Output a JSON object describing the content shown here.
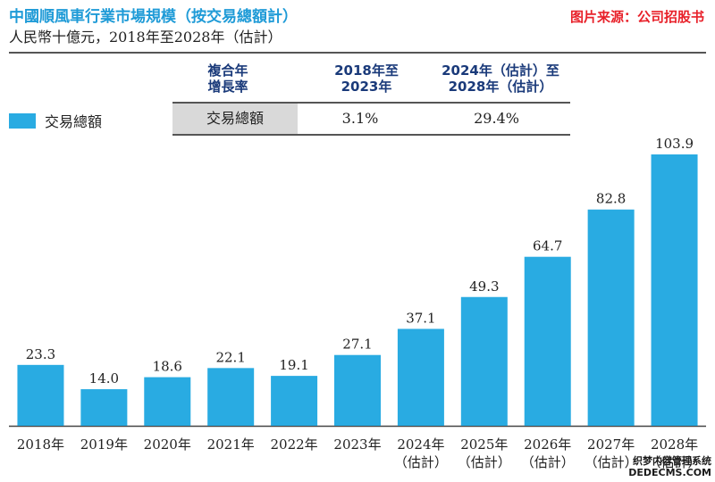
{
  "header": {
    "title": "中國順風車行業市場規模（按交易總額計）",
    "subtitle": "人民幣十億元，2018年至2028年（估計）",
    "source": "图片来源：公司招股书"
  },
  "legend": {
    "label": "交易總額",
    "color": "#29abe2"
  },
  "cagr_table": {
    "headers": [
      "複合年\n增長率",
      "2018年至\n2023年",
      "2024年（估計）至\n2028年（估計）"
    ],
    "row_label": "交易總額",
    "values": [
      "3.1%",
      "29.4%"
    ]
  },
  "watermark": {
    "line1": "织梦内容管理系统",
    "line2": "DEDECMS.COM"
  },
  "chart_data": {
    "type": "bar",
    "title": "中國順風車行業市場規模（按交易總額計）",
    "ylabel": "人民幣十億元",
    "categories": [
      "2018年",
      "2019年",
      "2020年",
      "2021年",
      "2022年",
      "2023年",
      "2024年\n（估計）",
      "2025年\n（估計）",
      "2026年\n（估計）",
      "2027年\n（估計）",
      "2028年\n（估計）"
    ],
    "values": [
      23.3,
      14.0,
      18.6,
      22.1,
      19.1,
      27.1,
      37.1,
      49.3,
      64.7,
      82.8,
      103.9
    ],
    "value_labels": [
      "23.3",
      "14.0",
      "18.6",
      "22.1",
      "19.1",
      "27.1",
      "37.1",
      "49.3",
      "64.7",
      "82.8",
      "103.9"
    ],
    "ylim": [
      0,
      103.9
    ],
    "bar_color": "#29abe2",
    "grid": false
  }
}
